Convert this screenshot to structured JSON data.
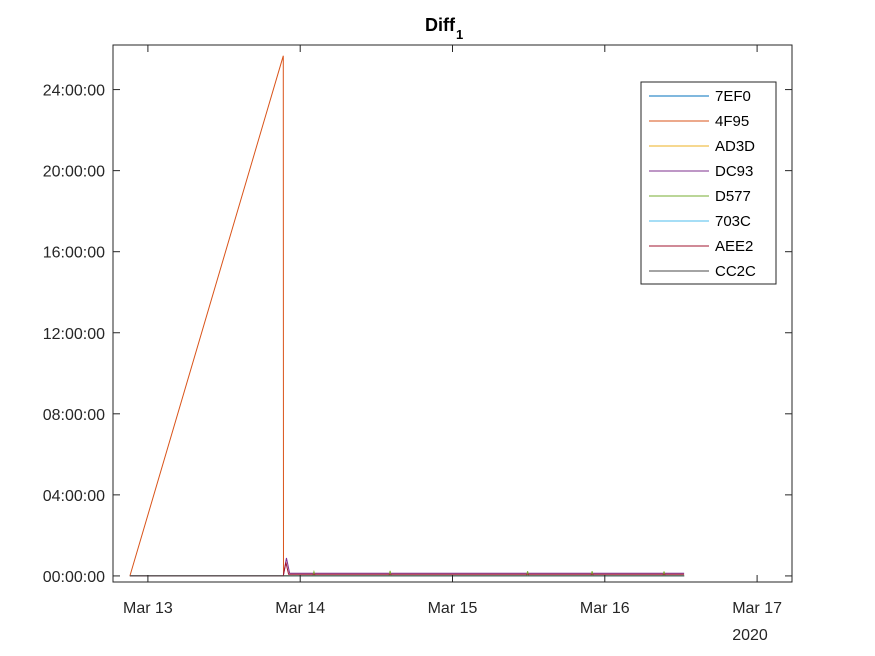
{
  "chart_data": {
    "type": "line",
    "title": "Diff",
    "title_subscript": "1",
    "x_axis": {
      "kind": "date",
      "range": [
        "2020-03-12T18:30",
        "2020-03-17T05:30"
      ],
      "ticks": [
        {
          "date": "2020-03-13",
          "label": "Mar 13"
        },
        {
          "date": "2020-03-14",
          "label": "Mar 14"
        },
        {
          "date": "2020-03-15",
          "label": "Mar 15"
        },
        {
          "date": "2020-03-16",
          "label": "Mar 16"
        },
        {
          "date": "2020-03-17",
          "label": "Mar 17"
        }
      ],
      "year_label": "2020"
    },
    "y_axis": {
      "kind": "duration",
      "range": [
        "-00:18:00",
        "26:12:00"
      ],
      "ticks": [
        "00:00:00",
        "04:00:00",
        "08:00:00",
        "12:00:00",
        "16:00:00",
        "20:00:00",
        "24:00:00"
      ]
    },
    "legend": {
      "position": "top-right",
      "box": true
    },
    "grid": false,
    "series": [
      {
        "name": "7EF0",
        "color": "#0072BD",
        "points": [
          [
            "2020-03-12T21:10",
            "00:00:00"
          ],
          [
            "2020-03-16T12:30",
            "00:00:00"
          ]
        ]
      },
      {
        "name": "4F95",
        "color": "#D95319",
        "points": [
          [
            "2020-03-12T21:10",
            "00:00:00"
          ],
          [
            "2020-03-13T21:20",
            "25:40:00"
          ],
          [
            "2020-03-13T21:22",
            "00:00:00"
          ],
          [
            "2020-03-16T12:30",
            "00:00:00"
          ]
        ]
      },
      {
        "name": "AD3D",
        "color": "#EDB120",
        "points": [
          [
            "2020-03-12T21:10",
            "00:00:00"
          ],
          [
            "2020-03-16T12:30",
            "00:00:00"
          ]
        ]
      },
      {
        "name": "DC93",
        "color": "#7E2F8E",
        "points": [
          [
            "2020-03-12T21:10",
            "00:00:00"
          ],
          [
            "2020-03-13T21:20",
            "00:00:00"
          ],
          [
            "2020-03-13T21:50",
            "00:53:00"
          ],
          [
            "2020-03-13T22:20",
            "00:08:00"
          ],
          [
            "2020-03-16T12:30",
            "00:08:00"
          ]
        ]
      },
      {
        "name": "D577",
        "color": "#77AC30",
        "points": [
          [
            "2020-03-12T21:10",
            "00:00:00"
          ],
          [
            "2020-03-14T02:00",
            "00:00:00"
          ],
          [
            "2020-03-14T02:10",
            "00:12:00"
          ],
          [
            "2020-03-14T02:20",
            "00:00:00"
          ],
          [
            "2020-03-14T14:00",
            "00:00:00"
          ],
          [
            "2020-03-14T14:10",
            "00:15:00"
          ],
          [
            "2020-03-14T14:20",
            "00:00:00"
          ],
          [
            "2020-03-15T11:40",
            "00:00:00"
          ],
          [
            "2020-03-15T11:50",
            "00:14:00"
          ],
          [
            "2020-03-15T12:00",
            "00:00:00"
          ],
          [
            "2020-03-15T21:50",
            "00:00:00"
          ],
          [
            "2020-03-15T22:00",
            "00:14:00"
          ],
          [
            "2020-03-15T22:10",
            "00:00:00"
          ],
          [
            "2020-03-16T09:10",
            "00:00:00"
          ],
          [
            "2020-03-16T09:20",
            "00:13:00"
          ],
          [
            "2020-03-16T09:30",
            "00:00:00"
          ],
          [
            "2020-03-16T12:30",
            "00:00:00"
          ]
        ]
      },
      {
        "name": "703C",
        "color": "#4DBEEE",
        "points": [
          [
            "2020-03-12T21:10",
            "00:00:00"
          ],
          [
            "2020-03-16T12:30",
            "00:00:00"
          ]
        ]
      },
      {
        "name": "AEE2",
        "color": "#A2142F",
        "points": [
          [
            "2020-03-12T21:10",
            "00:00:00"
          ],
          [
            "2020-03-13T21:20",
            "00:00:00"
          ],
          [
            "2020-03-13T21:45",
            "00:40:00"
          ],
          [
            "2020-03-13T22:10",
            "00:05:00"
          ],
          [
            "2020-03-16T12:30",
            "00:05:00"
          ]
        ]
      },
      {
        "name": "CC2C",
        "color": "#4A4A4A",
        "points": [
          [
            "2020-03-12T21:10",
            "00:00:00"
          ],
          [
            "2020-03-16T12:30",
            "00:00:00"
          ]
        ]
      }
    ]
  }
}
